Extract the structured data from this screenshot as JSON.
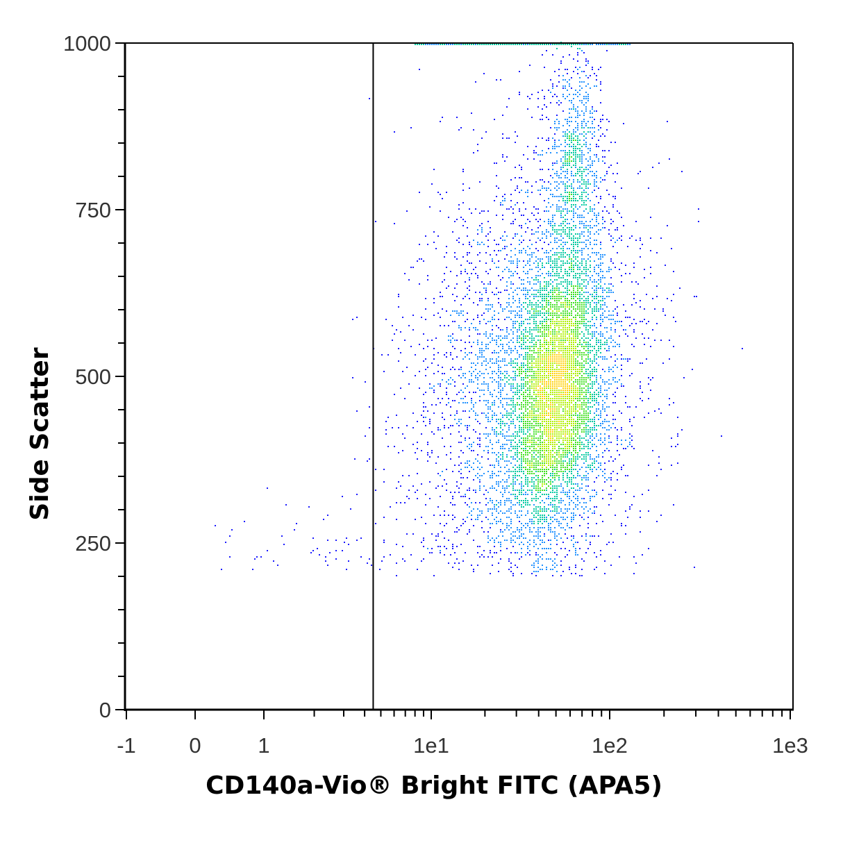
{
  "chart_data": {
    "type": "scatter",
    "title": "",
    "xlabel": "CD140a-Vio® Bright FITC (APA5)",
    "ylabel": "Side Scatter",
    "x_scale": "hlog",
    "xlim": [
      -1,
      1000
    ],
    "ylim": [
      0,
      1000
    ],
    "x_ticks": [
      {
        "value": -1,
        "label": "-1"
      },
      {
        "value": 0,
        "label": "0"
      },
      {
        "value": 1,
        "label": "1"
      },
      {
        "value": 10,
        "label": "1e1"
      },
      {
        "value": 100,
        "label": "1e2"
      },
      {
        "value": 1000,
        "label": "1e3"
      }
    ],
    "y_ticks": [
      {
        "value": 0,
        "label": "0"
      },
      {
        "value": 250,
        "label": "250"
      },
      {
        "value": 500,
        "label": "500"
      },
      {
        "value": 750,
        "label": "750"
      },
      {
        "value": 1000,
        "label": "1000"
      }
    ],
    "gate_x": 4.5,
    "grid": false,
    "density_colors": [
      "#1a1aff",
      "#1e90ff",
      "#00c8a0",
      "#40e020",
      "#b0f000",
      "#ffd000"
    ],
    "populations": [
      {
        "x": 50,
        "y": 480,
        "count": 5200,
        "x_log_sd": 0.13,
        "y_sd": 110,
        "slope": 0.0035
      },
      {
        "x": 35,
        "y": 480,
        "count": 3800,
        "x_log_sd": 0.33,
        "y_sd": 170,
        "slope": 0.002
      },
      {
        "x": 65,
        "y": 820,
        "count": 900,
        "x_log_sd": 0.08,
        "y_sd": 90,
        "slope": 0.0
      },
      {
        "x": 2.5,
        "y": 250,
        "count": 80,
        "x_log_sd": 0.45,
        "y_sd": 35,
        "slope": 0.0
      }
    ],
    "saturation_line": {
      "x_start": 8,
      "x_end": 130,
      "y": 1000
    }
  }
}
